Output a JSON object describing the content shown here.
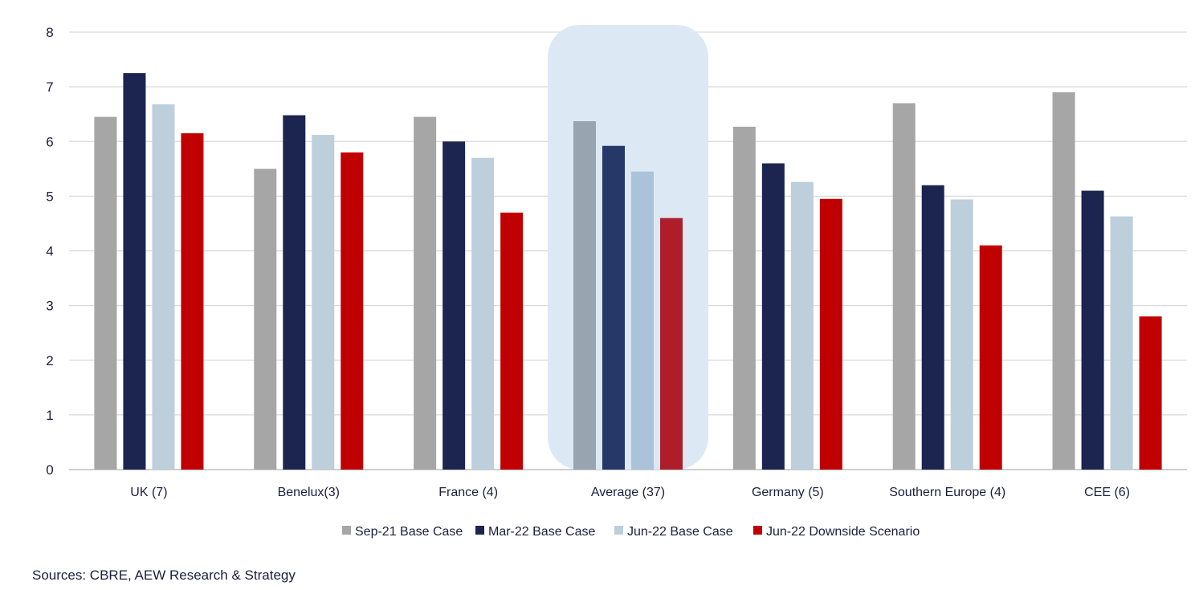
{
  "chart_data": {
    "type": "bar",
    "categories": [
      "UK (7)",
      "Benelux(3)",
      "France (4)",
      "Average (37)",
      "Germany (5)",
      "Southern Europe (4)",
      "CEE (6)"
    ],
    "series": [
      {
        "name": "Sep-21 Base Case",
        "color": "#a6a6a6",
        "values": [
          6.45,
          5.5,
          6.45,
          6.37,
          6.27,
          6.7,
          6.9
        ]
      },
      {
        "name": "Mar-22 Base Case",
        "color": "#1b254f",
        "values": [
          7.25,
          6.48,
          6.0,
          5.92,
          5.6,
          5.2,
          5.1
        ]
      },
      {
        "name": "Jun-22 Base Case",
        "color": "#bccfdb",
        "values": [
          6.68,
          6.12,
          5.7,
          5.45,
          5.26,
          4.94,
          4.63
        ]
      },
      {
        "name": "Jun-22 Downside Scenario",
        "color": "#c00000",
        "values": [
          6.15,
          5.8,
          4.7,
          4.6,
          4.95,
          4.1,
          2.8
        ]
      }
    ],
    "highlight_category": "Average (37)",
    "highlight_series_colors": [
      "#98a4b0",
      "#253868",
      "#aac3d9",
      "#ad1e2a"
    ],
    "highlight_fill": "#dde8f5",
    "ylim": [
      0,
      8
    ],
    "yticks": [
      0,
      1,
      2,
      3,
      4,
      5,
      6,
      7,
      8
    ],
    "gridlines": true,
    "legend_position": "bottom-center"
  },
  "source_note": "Sources: CBRE, AEW Research & Strategy"
}
